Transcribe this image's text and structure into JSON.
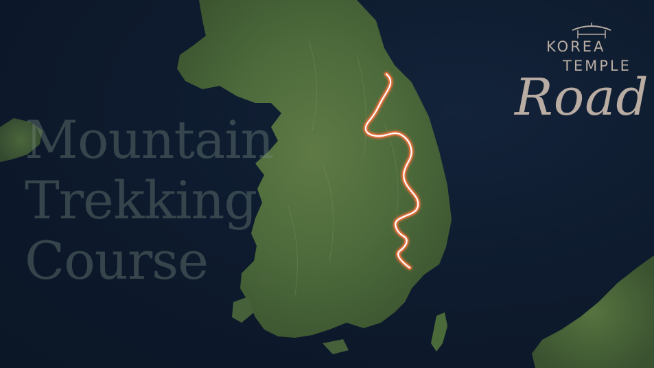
{
  "title": {
    "line1": "Mountain",
    "line2": "Trekking",
    "line3": "Course"
  },
  "logo": {
    "word1": "KOREA",
    "word2": "TEMPLE",
    "word3": "Road"
  },
  "colors": {
    "sea": "#0e1b2e",
    "land": "#4f6a3e",
    "route": "#e0703c",
    "route_core": "#ffffff",
    "logo": "#b9aca2"
  },
  "map": {
    "icons": [
      "korea-peninsula-landmass",
      "japan-landmass",
      "china-shandong-landmass",
      "trekking-route-line"
    ]
  }
}
